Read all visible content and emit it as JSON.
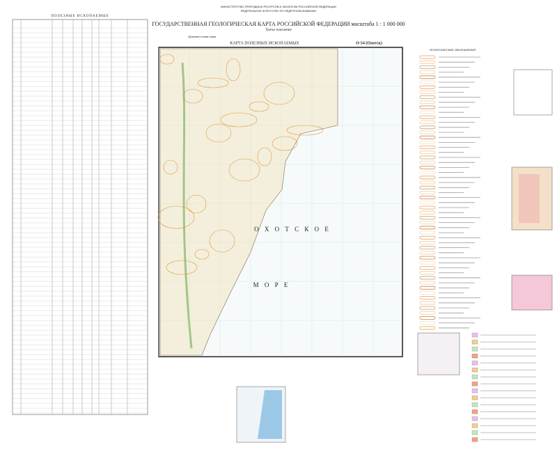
{
  "header": {
    "ministry": "МИНИСТЕРСТВО ПРИРОДНЫХ РЕСУРСОВ И ЭКОЛОГИИ РОССИЙСКОЙ ФЕДЕРАЦИИ",
    "agency": "ФЕДЕРАЛЬНОЕ АГЕНТСТВО ПО НЕДРОПОЛЬЗОВАНИЮ",
    "title": "ГОСУДАРСТВЕННАЯ ГЕОЛОГИЧЕСКАЯ КАРТА РОССИЙСКОЙ ФЕДЕРАЦИИ масштаба 1 : 1 000 000",
    "generation": "Третье поколение",
    "series": "Дальневосточная серия"
  },
  "map": {
    "title": "КАРТА ПОЛЕЗНЫХ ИСКОПАЕМЫХ",
    "sheet": "O-54 (Охотск)",
    "sea_top": "О Х О Т С К О Е",
    "sea_bottom": "М О Р Е"
  },
  "table": {
    "title": "ПОЛЕЗНЫЕ ИСКОПАЕМЫЕ"
  },
  "legend": {
    "title": "ГЕОЛОГИЧЕСКИЕ ОБОЗНАЧЕНИЯ"
  }
}
